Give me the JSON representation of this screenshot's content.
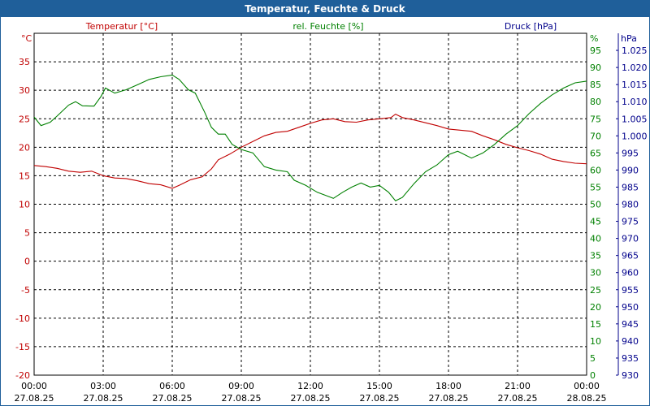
{
  "chart_data": {
    "type": "line",
    "title": "Temperatur, Feuchte & Druck",
    "axes": {
      "temperature": {
        "label": "Temperatur [°C]",
        "unit": "°C",
        "range": [
          -20,
          40
        ],
        "ticks": [
          -20,
          -15,
          -10,
          -5,
          0,
          5,
          10,
          15,
          20,
          25,
          30,
          35
        ],
        "color": "#c00000"
      },
      "humidity": {
        "label": "rel. Feuchte [%]",
        "unit": "%",
        "range": [
          0,
          100
        ],
        "ticks": [
          0,
          5,
          10,
          15,
          20,
          25,
          30,
          35,
          40,
          45,
          50,
          55,
          60,
          65,
          70,
          75,
          80,
          85,
          90,
          95
        ],
        "color": "#008000"
      },
      "pressure": {
        "label": "Druck [hPa]",
        "unit": "hPa",
        "range": [
          930,
          1030
        ],
        "ticks": [
          "930",
          "935",
          "940",
          "945",
          "950",
          "955",
          "960",
          "965",
          "970",
          "975",
          "980",
          "985",
          "990",
          "995",
          "1.000",
          "1.005",
          "1.010",
          "1.015",
          "1.020",
          "1.025"
        ],
        "color": "#00008b"
      }
    },
    "x_labels": [
      {
        "time": "00:00",
        "date": "27.08.25"
      },
      {
        "time": "03:00",
        "date": "27.08.25"
      },
      {
        "time": "06:00",
        "date": "27.08.25"
      },
      {
        "time": "09:00",
        "date": "27.08.25"
      },
      {
        "time": "12:00",
        "date": "27.08.25"
      },
      {
        "time": "15:00",
        "date": "27.08.25"
      },
      {
        "time": "18:00",
        "date": "27.08.25"
      },
      {
        "time": "21:00",
        "date": "27.08.25"
      },
      {
        "time": "00:00",
        "date": "28.08.25"
      }
    ],
    "x_unit": "hour",
    "grid": true,
    "series": [
      {
        "name": "Temperatur [°C]",
        "axis": "temperature",
        "color": "#c00000",
        "points": [
          [
            0,
            16.8
          ],
          [
            0.5,
            16.6
          ],
          [
            1,
            16.3
          ],
          [
            1.5,
            15.8
          ],
          [
            2,
            15.6
          ],
          [
            2.5,
            15.8
          ],
          [
            3,
            15.0
          ],
          [
            3.5,
            14.6
          ],
          [
            4,
            14.5
          ],
          [
            4.5,
            14.1
          ],
          [
            5,
            13.6
          ],
          [
            5.5,
            13.4
          ],
          [
            6,
            12.8
          ],
          [
            6.3,
            13.3
          ],
          [
            6.8,
            14.3
          ],
          [
            7.3,
            14.8
          ],
          [
            7.7,
            16.2
          ],
          [
            8.0,
            17.8
          ],
          [
            8.5,
            18.8
          ],
          [
            9,
            20.0
          ],
          [
            9.5,
            21.0
          ],
          [
            10,
            22.0
          ],
          [
            10.5,
            22.6
          ],
          [
            11,
            22.8
          ],
          [
            11.5,
            23.5
          ],
          [
            12,
            24.2
          ],
          [
            12.5,
            24.8
          ],
          [
            13,
            25.0
          ],
          [
            13.5,
            24.5
          ],
          [
            14,
            24.4
          ],
          [
            14.5,
            24.8
          ],
          [
            15,
            25.0
          ],
          [
            15.5,
            25.2
          ],
          [
            15.7,
            25.8
          ],
          [
            16,
            25.2
          ],
          [
            16.5,
            24.8
          ],
          [
            17,
            24.3
          ],
          [
            17.5,
            23.8
          ],
          [
            18,
            23.2
          ],
          [
            18.5,
            23.0
          ],
          [
            19,
            22.8
          ],
          [
            19.5,
            22.0
          ],
          [
            20,
            21.3
          ],
          [
            20.5,
            20.5
          ],
          [
            21,
            19.9
          ],
          [
            21.5,
            19.4
          ],
          [
            22,
            18.8
          ],
          [
            22.5,
            17.9
          ],
          [
            23,
            17.5
          ],
          [
            23.5,
            17.2
          ],
          [
            24,
            17.1
          ]
        ]
      },
      {
        "name": "rel. Feuchte [%]",
        "axis": "humidity",
        "color": "#008000",
        "points": [
          [
            0,
            75.5
          ],
          [
            0.3,
            73.0
          ],
          [
            0.7,
            74.0
          ],
          [
            1,
            75.8
          ],
          [
            1.5,
            79.0
          ],
          [
            1.8,
            80.0
          ],
          [
            2.1,
            78.8
          ],
          [
            2.6,
            78.7
          ],
          [
            2.9,
            81.5
          ],
          [
            3.1,
            84.0
          ],
          [
            3.5,
            82.5
          ],
          [
            4,
            83.5
          ],
          [
            4.5,
            85.0
          ],
          [
            5,
            86.5
          ],
          [
            5.5,
            87.3
          ],
          [
            6,
            87.8
          ],
          [
            6.3,
            86.5
          ],
          [
            6.7,
            83.5
          ],
          [
            7,
            82.5
          ],
          [
            7.4,
            77.0
          ],
          [
            7.7,
            72.5
          ],
          [
            8,
            70.5
          ],
          [
            8.3,
            70.5
          ],
          [
            8.6,
            67.5
          ],
          [
            9,
            66.0
          ],
          [
            9.5,
            65.0
          ],
          [
            10,
            61.0
          ],
          [
            10.5,
            60.0
          ],
          [
            11,
            59.5
          ],
          [
            11.3,
            57.0
          ],
          [
            11.8,
            55.5
          ],
          [
            12.3,
            53.5
          ],
          [
            12.7,
            52.5
          ],
          [
            13,
            51.7
          ],
          [
            13.4,
            53.5
          ],
          [
            13.8,
            55.0
          ],
          [
            14.2,
            56.2
          ],
          [
            14.6,
            55.0
          ],
          [
            15,
            55.5
          ],
          [
            15.4,
            53.5
          ],
          [
            15.7,
            51.0
          ],
          [
            16,
            52.0
          ],
          [
            16.5,
            56.0
          ],
          [
            17,
            59.5
          ],
          [
            17.5,
            61.5
          ],
          [
            18,
            64.5
          ],
          [
            18.4,
            65.5
          ],
          [
            19,
            63.5
          ],
          [
            19.5,
            65.0
          ],
          [
            20,
            67.5
          ],
          [
            20.5,
            70.5
          ],
          [
            21,
            73.0
          ],
          [
            21.5,
            76.5
          ],
          [
            22,
            79.5
          ],
          [
            22.5,
            82.0
          ],
          [
            23,
            84.0
          ],
          [
            23.5,
            85.5
          ],
          [
            24,
            86.0
          ]
        ]
      }
    ]
  }
}
